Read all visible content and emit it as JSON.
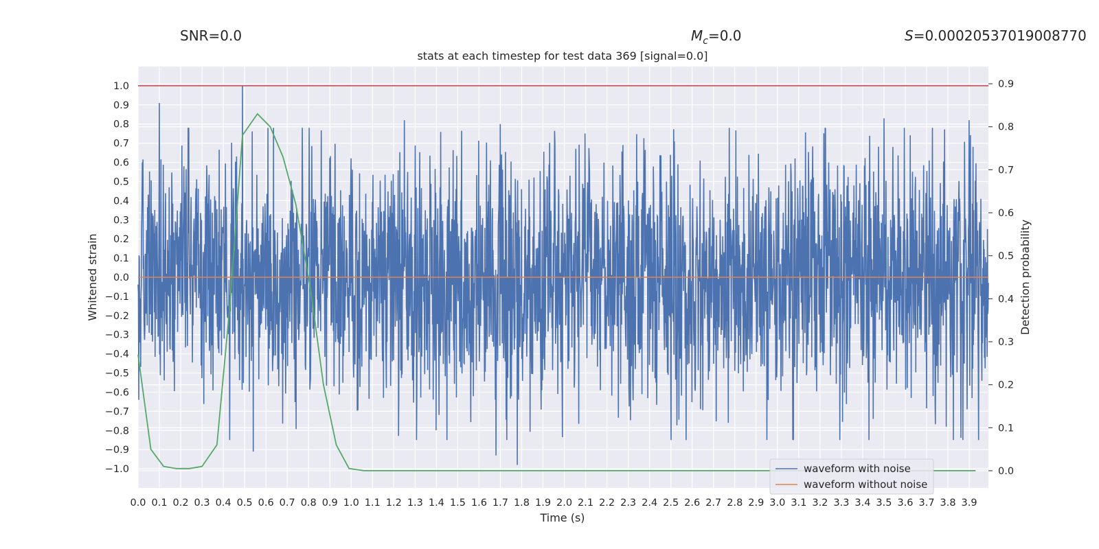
{
  "stats": {
    "snr": "SNR=0.0",
    "mc_symbol": "M",
    "mc_sub": "c",
    "mc_value": "=0.0",
    "s_symbol": "S",
    "s_value": "=0.00020537019008770"
  },
  "chart_data": {
    "type": "line",
    "title": "stats at each timestep for test data 369 [signal=0.0]",
    "xlabel": "Time (s)",
    "ylabel": "Whitened strain",
    "y2label": "Detection probability",
    "xlim": [
      0.0,
      3.99
    ],
    "ylim": [
      -1.1,
      1.1
    ],
    "y2lim": [
      -0.04,
      0.94
    ],
    "xticks": [
      "0.0",
      "0.1",
      "0.2",
      "0.3",
      "0.4",
      "0.5",
      "0.6",
      "0.7",
      "0.8",
      "0.9",
      "1.0",
      "1.1",
      "1.2",
      "1.3",
      "1.4",
      "1.5",
      "1.6",
      "1.7",
      "1.8",
      "1.9",
      "2.0",
      "2.1",
      "2.2",
      "2.3",
      "2.4",
      "2.5",
      "2.6",
      "2.7",
      "2.8",
      "2.9",
      "3.0",
      "3.1",
      "3.2",
      "3.3",
      "3.4",
      "3.5",
      "3.6",
      "3.7",
      "3.8",
      "3.9"
    ],
    "yticks": [
      "1.0",
      "0.9",
      "0.8",
      "0.7",
      "0.6",
      "0.5",
      "0.4",
      "0.3",
      "0.2",
      "0.1",
      "0.0",
      "−0.1",
      "−0.2",
      "−0.3",
      "−0.4",
      "−0.5",
      "−0.6",
      "−0.7",
      "−0.8",
      "−0.9",
      "−1.0"
    ],
    "y2ticks": [
      "0.9",
      "0.8",
      "0.7",
      "0.6",
      "0.5",
      "0.4",
      "0.3",
      "0.2",
      "0.1",
      "0.0"
    ],
    "grid": true,
    "legend_position": "lower-right",
    "colors": {
      "noise": "#4c72b0",
      "clean": "#dd8452",
      "probability": "#55a868",
      "threshold": "#c44e52",
      "plot_bg": "#eaeaf2",
      "grid": "#ffffff"
    },
    "series": [
      {
        "name": "waveform with noise",
        "axis": "left",
        "description_values": "dense noisy strain, roughly within [-1.0, 1.0]; peak 1.0 near t=0.49s",
        "peaks": [
          {
            "x": 0.02,
            "y": 0.6
          },
          {
            "x": 0.1,
            "y": 0.91
          },
          {
            "x": 0.49,
            "y": 1.0
          },
          {
            "x": 0.54,
            "y": -0.91
          },
          {
            "x": 1.25,
            "y": 0.82
          },
          {
            "x": 1.7,
            "y": 0.8
          },
          {
            "x": 1.78,
            "y": -0.98
          },
          {
            "x": 1.68,
            "y": -0.93
          },
          {
            "x": 3.5,
            "y": 0.83
          },
          {
            "x": 3.9,
            "y": 0.82
          },
          {
            "x": 3.45,
            "y": -0.74
          }
        ]
      },
      {
        "name": "waveform without noise",
        "axis": "left",
        "x": [
          0.0,
          3.99
        ],
        "y": [
          0.0,
          0.0
        ]
      },
      {
        "axis": "right",
        "x": [
          0.0,
          0.06,
          0.12,
          0.18,
          0.24,
          0.3,
          0.37,
          0.43,
          0.49,
          0.56,
          0.62,
          0.68,
          0.74,
          0.81,
          0.87,
          0.93,
          0.99,
          1.06,
          1.2,
          1.5,
          2.0,
          2.5,
          3.0,
          3.5,
          3.93
        ],
        "y": [
          0.27,
          0.05,
          0.01,
          0.005,
          0.005,
          0.01,
          0.06,
          0.38,
          0.78,
          0.83,
          0.8,
          0.73,
          0.62,
          0.42,
          0.2,
          0.06,
          0.005,
          0.0,
          0.0,
          0.0,
          0.0,
          0.0,
          0.0,
          0.0,
          0.0
        ]
      },
      {
        "axis": "left",
        "x": [
          0.0,
          3.99
        ],
        "y": [
          1.0,
          1.0
        ]
      }
    ]
  }
}
